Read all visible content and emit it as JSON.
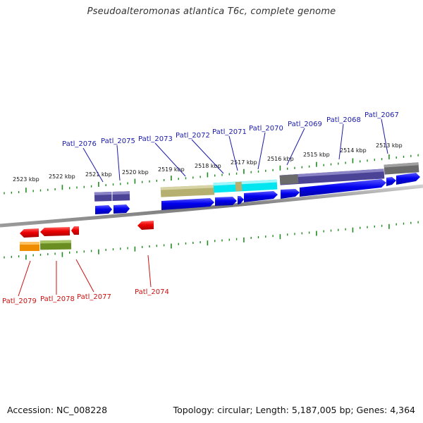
{
  "title": "Pseudoalteromonas atlantica T6c, complete genome",
  "footer": {
    "accession": "Accession: NC_008228",
    "topology": "Topology: circular; Length: 5,187,005 bp; Genes: 4,364"
  },
  "kbp_labels": [
    "2523 kbp",
    "2522 kbp",
    "2521 kbp",
    "2520 kbp",
    "2519 kbp",
    "2518 kbp",
    "2517 kbp",
    "2516 kbp",
    "2515 kbp",
    "2514 kbp",
    "2513 kbp"
  ],
  "forward_gene_labels": [
    "Patl_2076",
    "Patl_2075",
    "Patl_2073",
    "Patl_2072",
    "Patl_2071",
    "Patl_2070",
    "Patl_2069",
    "Patl_2068",
    "Patl_2067"
  ],
  "reverse_gene_labels": [
    "Patl_2079",
    "Patl_2078",
    "Patl_2077",
    "Patl_2074"
  ],
  "colors": {
    "forward_gene": "#0000ee",
    "reverse_gene": "#ee0000",
    "forward_label": "#1a1aaa",
    "reverse_label": "#cc1111",
    "tick": "#1f8c1f",
    "backbone": "#8a8a8a"
  }
}
